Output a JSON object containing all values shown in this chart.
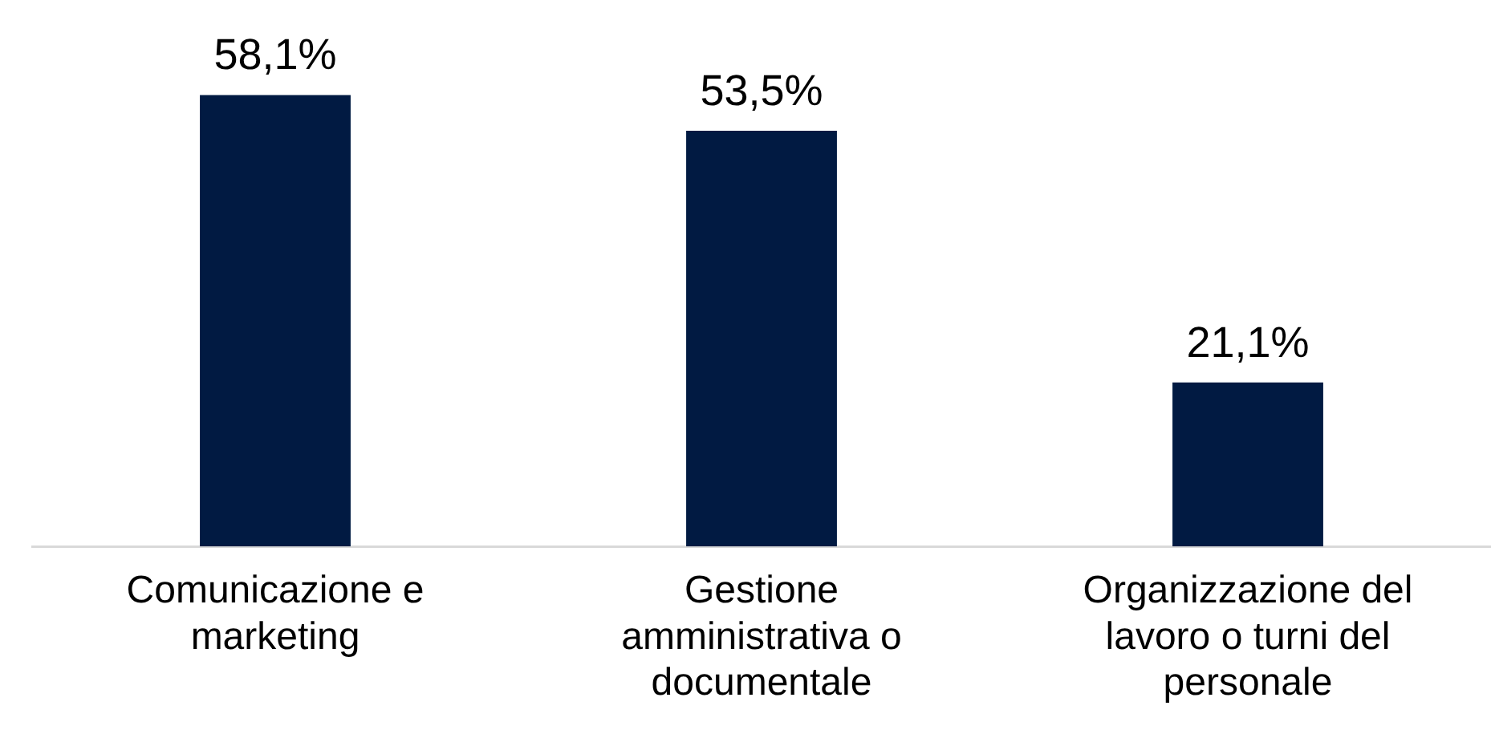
{
  "chart_data": {
    "type": "bar",
    "categories": [
      "Comunicazione e marketing",
      "Gestione amministrativa o documentale",
      "Organizzazione del lavoro o turni del personale"
    ],
    "values": [
      58.1,
      53.5,
      21.1
    ],
    "value_labels": [
      "58,1%",
      "53,5%",
      "21,1%"
    ],
    "color": "#011a42",
    "tick_labels": "x",
    "grid": false,
    "legend": false
  }
}
